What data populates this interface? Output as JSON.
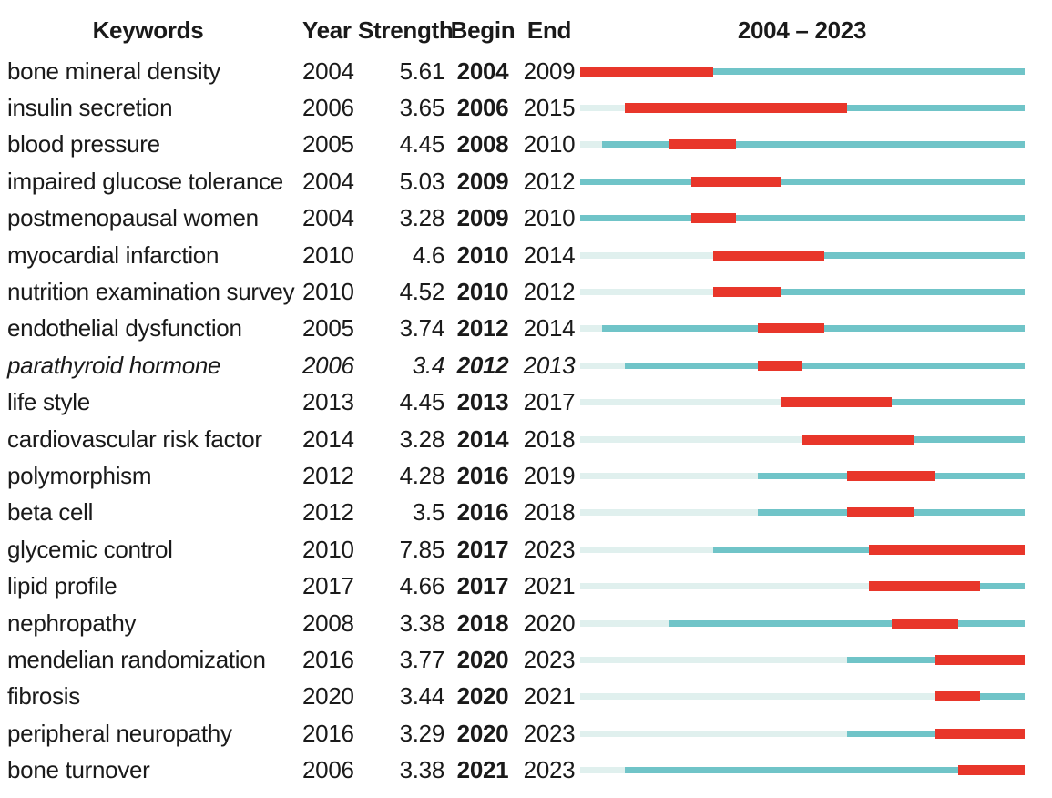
{
  "header": {
    "keywords": "Keywords",
    "year": "Year",
    "strength": "Strength",
    "begin": "Begin",
    "end": "End",
    "range": "2004 – 2023"
  },
  "chart_data": {
    "type": "table",
    "subtype": "keyword-citation-burst-timeline",
    "title": "",
    "columns": [
      "Keywords",
      "Year",
      "Strength",
      "Begin",
      "End",
      "2004 – 2023"
    ],
    "timeline_start": 2004,
    "timeline_end": 2023,
    "legend": {
      "burst_period": "red",
      "active_period": "teal",
      "before_first_appearance": "pale"
    },
    "colors": {
      "burst": "#e8362a",
      "active": "#70c4c8",
      "inactive": "#e0f0ee",
      "text": "#1a1a1a",
      "background": "#ffffff"
    },
    "rows": [
      {
        "keyword": "bone mineral density",
        "year": 2004,
        "strength": "5.61",
        "begin": 2004,
        "end": 2009,
        "italic": false
      },
      {
        "keyword": "insulin secretion",
        "year": 2006,
        "strength": "3.65",
        "begin": 2006,
        "end": 2015,
        "italic": false
      },
      {
        "keyword": "blood pressure",
        "year": 2005,
        "strength": "4.45",
        "begin": 2008,
        "end": 2010,
        "italic": false
      },
      {
        "keyword": "impaired glucose tolerance",
        "year": 2004,
        "strength": "5.03",
        "begin": 2009,
        "end": 2012,
        "italic": false
      },
      {
        "keyword": "postmenopausal women",
        "year": 2004,
        "strength": "3.28",
        "begin": 2009,
        "end": 2010,
        "italic": false
      },
      {
        "keyword": "myocardial infarction",
        "year": 2010,
        "strength": "4.6",
        "begin": 2010,
        "end": 2014,
        "italic": false
      },
      {
        "keyword": "nutrition examination survey",
        "year": 2010,
        "strength": "4.52",
        "begin": 2010,
        "end": 2012,
        "italic": false
      },
      {
        "keyword": "endothelial dysfunction",
        "year": 2005,
        "strength": "3.74",
        "begin": 2012,
        "end": 2014,
        "italic": false
      },
      {
        "keyword": "parathyroid hormone",
        "year": 2006,
        "strength": "3.4",
        "begin": 2012,
        "end": 2013,
        "italic": true
      },
      {
        "keyword": "life style",
        "year": 2013,
        "strength": "4.45",
        "begin": 2013,
        "end": 2017,
        "italic": false
      },
      {
        "keyword": "cardiovascular risk factor",
        "year": 2014,
        "strength": "3.28",
        "begin": 2014,
        "end": 2018,
        "italic": false
      },
      {
        "keyword": "polymorphism",
        "year": 2012,
        "strength": "4.28",
        "begin": 2016,
        "end": 2019,
        "italic": false
      },
      {
        "keyword": "beta cell",
        "year": 2012,
        "strength": "3.5",
        "begin": 2016,
        "end": 2018,
        "italic": false
      },
      {
        "keyword": "glycemic control",
        "year": 2010,
        "strength": "7.85",
        "begin": 2017,
        "end": 2023,
        "italic": false
      },
      {
        "keyword": "lipid profile",
        "year": 2017,
        "strength": "4.66",
        "begin": 2017,
        "end": 2021,
        "italic": false
      },
      {
        "keyword": "nephropathy",
        "year": 2008,
        "strength": "3.38",
        "begin": 2018,
        "end": 2020,
        "italic": false
      },
      {
        "keyword": "mendelian randomization",
        "year": 2016,
        "strength": "3.77",
        "begin": 2020,
        "end": 2023,
        "italic": false
      },
      {
        "keyword": "fibrosis",
        "year": 2020,
        "strength": "3.44",
        "begin": 2020,
        "end": 2021,
        "italic": false
      },
      {
        "keyword": "peripheral neuropathy",
        "year": 2016,
        "strength": "3.29",
        "begin": 2020,
        "end": 2023,
        "italic": false
      },
      {
        "keyword": "bone turnover",
        "year": 2006,
        "strength": "3.38",
        "begin": 2021,
        "end": 2023,
        "italic": false
      }
    ]
  }
}
